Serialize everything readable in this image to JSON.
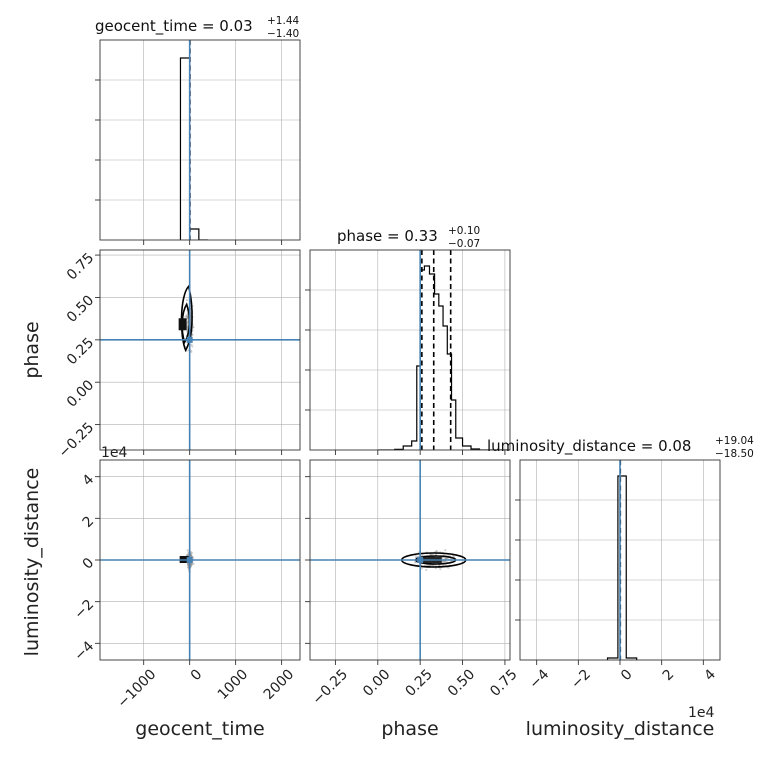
{
  "chart_data": {
    "type": "corner",
    "parameters": [
      {
        "name": "geocent_time",
        "label": "geocent_time",
        "median": "0.03",
        "plus": "+1.44",
        "minus": "−1.40",
        "range": [
          -1950,
          2400
        ],
        "ticks": [
          -1000,
          0,
          1000,
          2000
        ],
        "tick_labels": [
          "−1000",
          "0",
          "1000",
          "2000"
        ],
        "truth": 0,
        "hist_bins": [
          [
            -200,
            -1,
            0.91
          ],
          [
            -1,
            200,
            0.055
          ],
          [
            200,
            400,
            0.0
          ]
        ]
      },
      {
        "name": "phase",
        "label": "phase",
        "median": "0.33",
        "plus": "+0.10",
        "minus": "−0.07",
        "range": [
          -0.4,
          0.78
        ],
        "ticks": [
          -0.25,
          0.0,
          0.25,
          0.5,
          0.75
        ],
        "tick_labels": [
          "−0.25",
          "0.00",
          "0.25",
          "0.50",
          "0.75"
        ],
        "quantiles": [
          0.26,
          0.33,
          0.43
        ],
        "truth": 0.25,
        "hist_bins": [
          [
            0.0,
            0.05,
            0.0
          ],
          [
            0.05,
            0.1,
            0.0
          ],
          [
            0.1,
            0.15,
            0.003
          ],
          [
            0.15,
            0.2,
            0.02
          ],
          [
            0.2,
            0.23,
            0.045
          ],
          [
            0.23,
            0.25,
            0.42
          ],
          [
            0.25,
            0.275,
            0.9
          ],
          [
            0.275,
            0.305,
            0.92
          ],
          [
            0.305,
            0.335,
            0.88
          ],
          [
            0.335,
            0.36,
            0.78
          ],
          [
            0.36,
            0.385,
            0.72
          ],
          [
            0.385,
            0.41,
            0.62
          ],
          [
            0.41,
            0.435,
            0.48
          ],
          [
            0.435,
            0.46,
            0.25
          ],
          [
            0.46,
            0.5,
            0.06
          ],
          [
            0.5,
            0.55,
            0.02
          ],
          [
            0.55,
            0.6,
            0.005
          ],
          [
            0.6,
            0.78,
            0.0
          ]
        ]
      },
      {
        "name": "luminosity_distance",
        "label": "luminosity_distance",
        "median": "0.08",
        "plus": "+19.04",
        "minus": "−18.50",
        "range": [
          -48000,
          48000
        ],
        "ticks": [
          -40000,
          -20000,
          0,
          20000,
          40000
        ],
        "tick_labels": [
          "−4",
          "−2",
          "0",
          "2",
          "4"
        ],
        "offset_label": "1e4",
        "truth": 0,
        "hist_bins": [
          [
            -6000,
            -1000,
            0.01
          ],
          [
            -1000,
            3000,
            0.92
          ],
          [
            3000,
            8000,
            0.01
          ]
        ]
      }
    ],
    "truth_color": "#4682b4",
    "grid": true
  }
}
